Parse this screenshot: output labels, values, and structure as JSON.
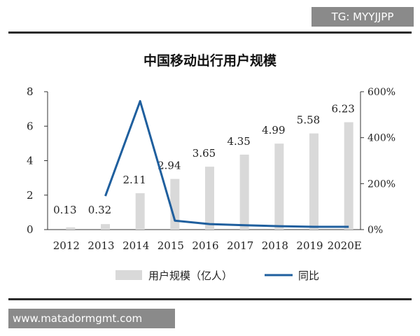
{
  "watermark_top": "TG: MYYJJPP",
  "watermark_bottom": "www.matadormgmt.com",
  "colors": {
    "bar": "#d9d9d9",
    "line": "#1f5f9e",
    "axis": "#333333",
    "text": "#222222"
  },
  "chart_data": {
    "type": "bar+line",
    "title": "中国移动出行用户规模",
    "categories": [
      "2012",
      "2013",
      "2014",
      "2015",
      "2016",
      "2017",
      "2018",
      "2019",
      "2020E"
    ],
    "y_left": {
      "ticks": [
        "0",
        "2",
        "4",
        "6",
        "8"
      ],
      "ylim": [
        0,
        8
      ]
    },
    "y_right": {
      "ticks": [
        "0%",
        "200%",
        "400%",
        "600%"
      ],
      "ylim": [
        0,
        600
      ]
    },
    "series": [
      {
        "name": "用户规模（亿人）",
        "kind": "bar",
        "axis": "left",
        "values": [
          0.13,
          0.32,
          2.11,
          2.94,
          3.65,
          4.35,
          4.99,
          5.58,
          6.23
        ],
        "labels": [
          "0.13",
          "0.32",
          "2.11",
          "2.94",
          "3.65",
          "4.35",
          "4.99",
          "5.58",
          "6.23"
        ]
      },
      {
        "name": "同比",
        "kind": "line",
        "axis": "right",
        "values": [
          null,
          146,
          559,
          39,
          24,
          19,
          15,
          12,
          12
        ]
      }
    ],
    "legend_position": "bottom",
    "grid": false
  }
}
